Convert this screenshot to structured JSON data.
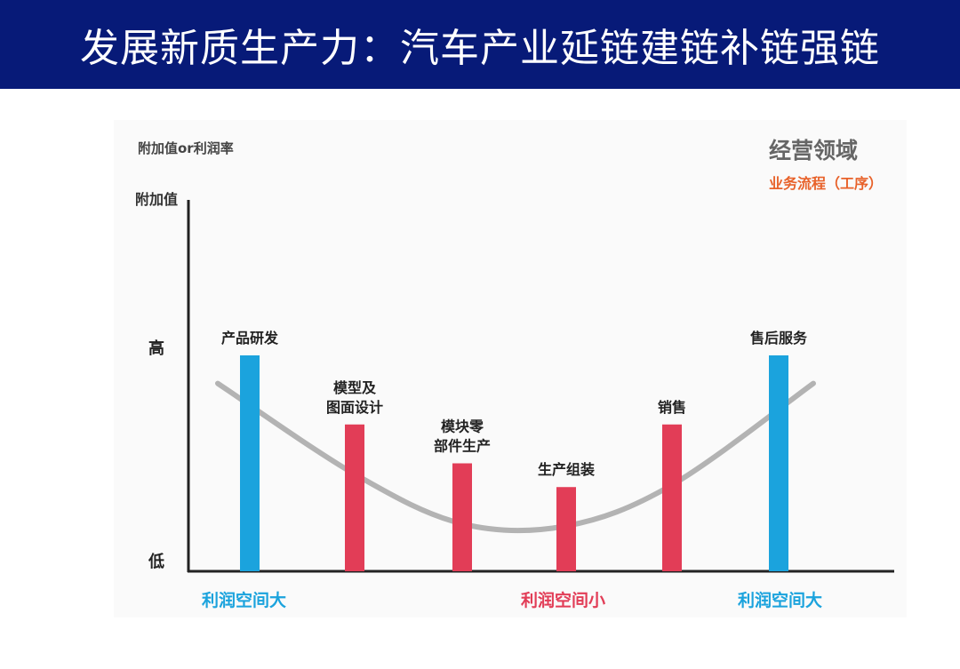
{
  "page_title": "发展新质生产力：汽车产业延链建链补链强链",
  "colors": {
    "banner": "#071a78",
    "high_bar": "#1ba3dd",
    "low_bar": "#e23d57",
    "curve": "#b3b3b3",
    "domain_orange": "#e8622a"
  },
  "chart_data": {
    "type": "bar",
    "ylabel": "附加值or利润率",
    "y_axis_label": "附加值",
    "y_ticks": [
      "高",
      "低"
    ],
    "ylim": [
      0,
      100
    ],
    "domain_title": "经营领域",
    "domain_subtitle": "业务流程（工序）",
    "categories": [
      "产品研发",
      "模型及\n图面设计",
      "模块零\n部件生产",
      "生产组装",
      "销售",
      "售后服务"
    ],
    "values": [
      100,
      68,
      50,
      39,
      68,
      100
    ],
    "bar_colors": [
      "#1ba3dd",
      "#e23d57",
      "#e23d57",
      "#e23d57",
      "#e23d57",
      "#1ba3dd"
    ],
    "curve_y": [
      87,
      45,
      22,
      21,
      40,
      87
    ],
    "profit_labels": [
      {
        "text": "利润空间大",
        "color": "#1ba3dd"
      },
      {
        "text": "利润空间小",
        "color": "#e23d57"
      },
      {
        "text": "利润空间大",
        "color": "#1ba3dd"
      }
    ]
  }
}
